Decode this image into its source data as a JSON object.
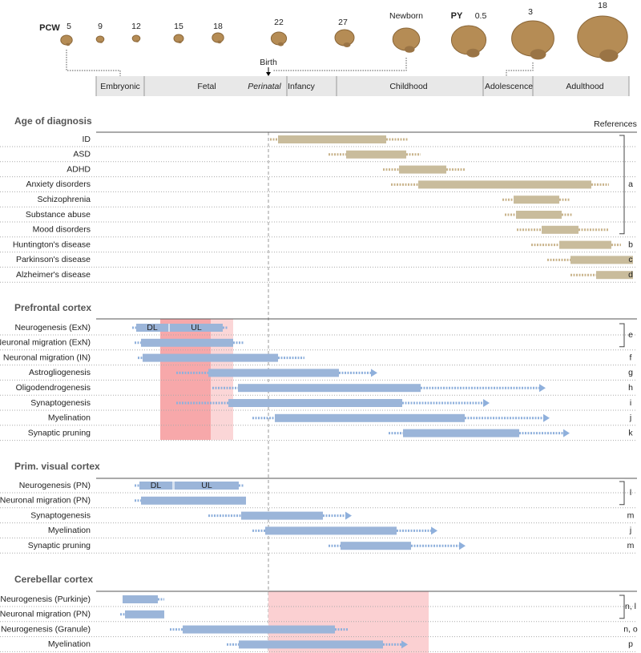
{
  "timeline": {
    "pcw_label": "PCW",
    "pcw": [
      5,
      9,
      12,
      15,
      18,
      22,
      27
    ],
    "newborn": "Newborn",
    "py_label": "PY",
    "py": [
      0.5,
      3,
      18
    ],
    "birth": "Birth",
    "stages": [
      "Embryonic",
      "Fetal",
      "Perinatal",
      "Infancy",
      "Childhood",
      "Adolescence",
      "Adulthood"
    ]
  },
  "references_header": "References",
  "sections": [
    {
      "title": "Age of diagnosis",
      "rows": [
        {
          "label": "ID"
        },
        {
          "label": "ASD"
        },
        {
          "label": "ADHD"
        },
        {
          "label": "Anxiety disorders"
        },
        {
          "label": "Schizophrenia"
        },
        {
          "label": "Substance abuse"
        },
        {
          "label": "Mood disorders"
        },
        {
          "label": "Huntington's disease"
        },
        {
          "label": "Parkinson's disease"
        },
        {
          "label": "Alzheimer's disease"
        }
      ],
      "refs": [
        "a",
        "b",
        "c",
        "d"
      ]
    },
    {
      "title": "Prefrontal cortex",
      "rows": [
        {
          "label": "Neurogenesis (ExN)",
          "segments": [
            "DL",
            "UL"
          ]
        },
        {
          "label": "Neuronal migration (ExN)"
        },
        {
          "label": "Neuronal migration (IN)"
        },
        {
          "label": "Astrogliogenesis"
        },
        {
          "label": "Oligodendrogenesis"
        },
        {
          "label": "Synaptogenesis"
        },
        {
          "label": "Myelination"
        },
        {
          "label": "Synaptic pruning"
        }
      ],
      "refs": [
        "e",
        "f",
        "g",
        "h",
        "i",
        "j",
        "k"
      ]
    },
    {
      "title": "Prim. visual cortex",
      "rows": [
        {
          "label": "Neurogenesis (PN)",
          "segments": [
            "DL",
            "UL"
          ]
        },
        {
          "label": "Neuronal migration (PN)"
        },
        {
          "label": "Synaptogenesis"
        },
        {
          "label": "Myelination"
        },
        {
          "label": "Synaptic pruning"
        }
      ],
      "refs": [
        "l",
        "m",
        "j",
        "m"
      ]
    },
    {
      "title": "Cerebellar cortex",
      "rows": [
        {
          "label": "Neurogenesis (Purkinje)"
        },
        {
          "label": "Neuronal migration (PN)"
        },
        {
          "label": "Neurogenesis (Granule)"
        },
        {
          "label": "Myelination"
        }
      ],
      "refs": [
        "n, l",
        "n, o",
        "p"
      ]
    }
  ]
}
